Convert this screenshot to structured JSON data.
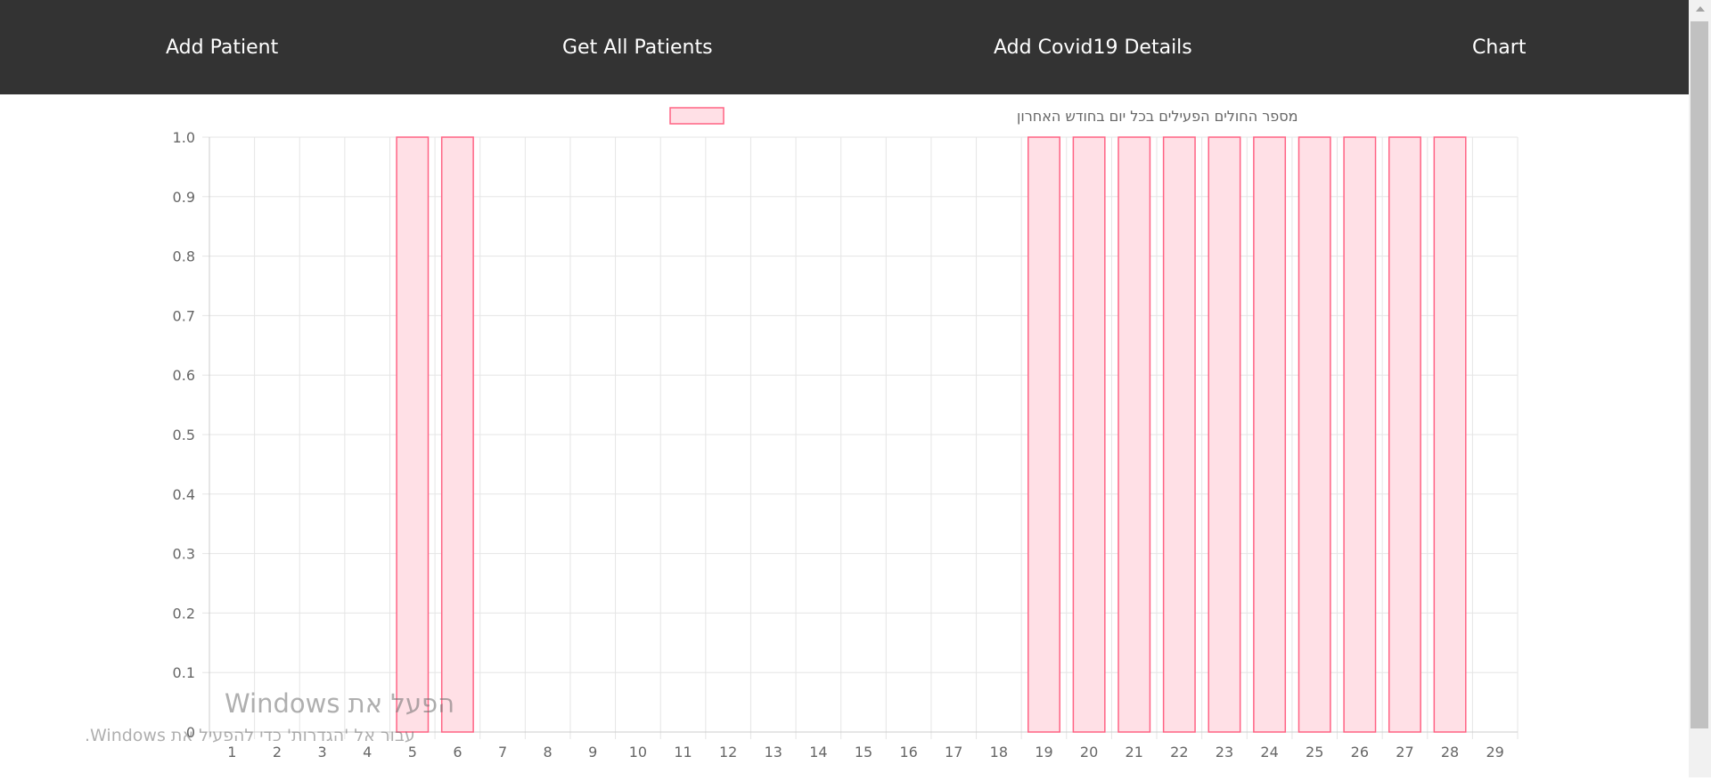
{
  "nav": {
    "add_patient": "Add Patient",
    "get_all_patients": "Get All Patients",
    "add_covid_details": "Add Covid19 Details",
    "chart": "Chart"
  },
  "watermark": {
    "line1": "הפעל את Windows",
    "line2": "עבור אל 'הגדרות' כדי להפעיל את Windows."
  },
  "colors": {
    "nav_background": "#333333",
    "bar_fill": "#ffe0e6",
    "bar_border": "#ff6384",
    "grid": "#e5e5e5"
  },
  "chart_data": {
    "type": "bar",
    "title": "",
    "xlabel": "",
    "ylabel": "",
    "legend_position": "top",
    "grid": true,
    "ylim": [
      0,
      1
    ],
    "y_ticks": [
      "0",
      "0.1",
      "0.2",
      "0.3",
      "0.4",
      "0.5",
      "0.6",
      "0.7",
      "0.8",
      "0.9",
      "1.0"
    ],
    "categories": [
      "1",
      "2",
      "3",
      "4",
      "5",
      "6",
      "7",
      "8",
      "9",
      "10",
      "11",
      "12",
      "13",
      "14",
      "15",
      "16",
      "17",
      "18",
      "19",
      "20",
      "21",
      "22",
      "23",
      "24",
      "25",
      "26",
      "27",
      "28",
      "29"
    ],
    "series": [
      {
        "name": "מספר החולים הפעילים בכל יום בחודש האחרון",
        "values": [
          0,
          0,
          0,
          0,
          1,
          1,
          0,
          0,
          0,
          0,
          0,
          0,
          0,
          0,
          0,
          0,
          0,
          0,
          1,
          1,
          1,
          1,
          1,
          1,
          1,
          1,
          1,
          1,
          0
        ]
      }
    ]
  }
}
